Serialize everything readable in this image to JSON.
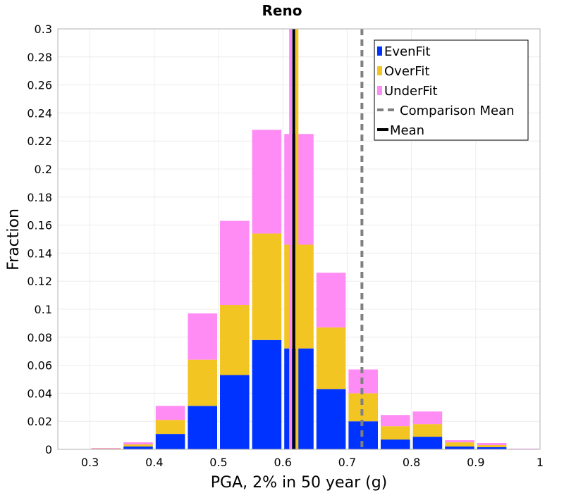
{
  "chart_data": {
    "type": "bar",
    "stacked": true,
    "title": "Reno",
    "xlabel": "PGA, 2% in 50 year (g)",
    "ylabel": "Fraction",
    "xlim": [
      0.25,
      1.0
    ],
    "ylim": [
      0,
      0.3
    ],
    "xticks": [
      "0.3",
      "0.4",
      "0.5",
      "0.6",
      "0.7",
      "0.8",
      "0.9",
      "1"
    ],
    "yticks": [
      "0",
      "0.02",
      "0.04",
      "0.06",
      "0.08",
      "0.1",
      "0.12",
      "0.14",
      "0.16",
      "0.18",
      "0.2",
      "0.22",
      "0.24",
      "0.26",
      "0.28",
      "0.3"
    ],
    "bin_width": 0.05,
    "bin_centers": [
      0.275,
      0.325,
      0.375,
      0.425,
      0.475,
      0.525,
      0.575,
      0.625,
      0.675,
      0.725,
      0.775,
      0.825,
      0.875,
      0.925,
      0.975
    ],
    "series": [
      {
        "name": "EvenFit",
        "color": "#0033ff",
        "values": [
          0.0,
          0.0003,
          0.002,
          0.011,
          0.031,
          0.053,
          0.078,
          0.072,
          0.043,
          0.02,
          0.007,
          0.009,
          0.002,
          0.0015,
          0.0
        ]
      },
      {
        "name": "OverFit",
        "color": "#f2c522",
        "values": [
          0.0,
          0.0003,
          0.0015,
          0.01,
          0.033,
          0.05,
          0.076,
          0.074,
          0.044,
          0.02,
          0.0095,
          0.009,
          0.003,
          0.0015,
          0.0
        ]
      },
      {
        "name": "UnderFit",
        "color": "#ff8cf5",
        "values": [
          0.0,
          0.0004,
          0.0015,
          0.01,
          0.033,
          0.06,
          0.074,
          0.079,
          0.039,
          0.017,
          0.008,
          0.009,
          0.0015,
          0.0015,
          0.0005
        ]
      }
    ],
    "lines": [
      {
        "name": "Comparison Mean",
        "x": 0.723,
        "color": "#808080",
        "style": "dashed"
      },
      {
        "name": "Mean",
        "x": 0.617,
        "color": "#000000",
        "style": "solid"
      }
    ],
    "series_mean_lines": [
      {
        "name": "UnderFit mean",
        "x": 0.612,
        "color": "#ff8cf5"
      },
      {
        "name": "OverFit mean",
        "x": 0.622,
        "color": "#f2c522"
      },
      {
        "name": "EvenFit mean",
        "x": 0.617,
        "color": "#0033ff"
      }
    ],
    "legend": {
      "position": "top-right",
      "entries": [
        "EvenFit",
        "OverFit",
        "UnderFit",
        "Comparison Mean",
        "Mean"
      ]
    },
    "grid": true
  }
}
